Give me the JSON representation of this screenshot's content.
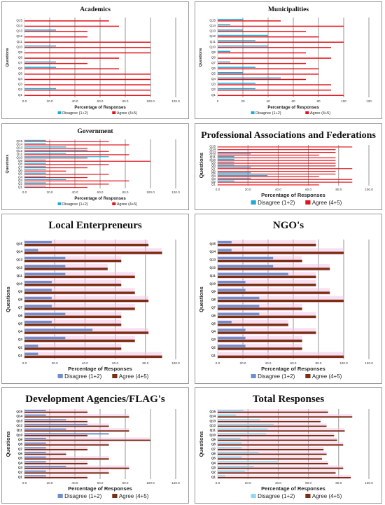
{
  "colors": {
    "disagree": "#1fa9d6",
    "agree": "#e0141c",
    "disagree_muted": "#6d8fd0",
    "agree_muted": "#7b2e12",
    "grid": "#8a8a8a",
    "highlight": "#f2c6ea"
  },
  "chart_data": [
    {
      "type": "bar",
      "title": "Academics",
      "title_size": "small",
      "xlabel": "Percentage of Responses",
      "ylabel": "Questions",
      "xlim": [
        0,
        120
      ],
      "xticks": [
        0,
        20,
        40,
        60,
        80,
        100,
        120
      ],
      "tick_labels": [
        "0.0",
        "20.0",
        "40.0",
        "60.0",
        "80.0",
        "100.0",
        "120.0"
      ],
      "categories": [
        "Q1",
        "Q2",
        "Q3",
        "Q4",
        "Q5",
        "Q6",
        "Q7",
        "Q8",
        "Q9",
        "Q10",
        "Q11",
        "Q12",
        "Q13",
        "Q14",
        "Q15"
      ],
      "grid": true,
      "legend": "bottom",
      "style": "standard",
      "series": [
        {
          "name": "Disagree (1+2)",
          "values": [
            0,
            25,
            0,
            0,
            0,
            25,
            25,
            0,
            0,
            25,
            0,
            0,
            25,
            0,
            0
          ]
        },
        {
          "name": "Agree (4+5)",
          "values": [
            100,
            100,
            100,
            100,
            100,
            75,
            50,
            75,
            100,
            100,
            100,
            50,
            50,
            75,
            67
          ]
        }
      ]
    },
    {
      "type": "bar",
      "title": "Municipalities",
      "title_size": "small",
      "xlabel": "Percentage of Responses",
      "ylabel": "Questions",
      "xlim": [
        0,
        120
      ],
      "xticks": [
        0,
        20,
        40,
        60,
        80,
        100,
        120
      ],
      "tick_labels": [
        "0",
        "20",
        "40",
        "60",
        "80",
        "100",
        "120"
      ],
      "categories": [
        "Q1",
        "Q2",
        "Q3",
        "Q4",
        "Q5",
        "Q6",
        "Q7",
        "Q8",
        "Q9",
        "Q10",
        "Q11",
        "Q12",
        "Q13",
        "Q14",
        "Q15"
      ],
      "grid": true,
      "legend": "bottom",
      "style": "standard",
      "series": [
        {
          "name": "Disagree (1+2)",
          "values": [
            0,
            30,
            30,
            50,
            20,
            30,
            10,
            0,
            10,
            40,
            30,
            40,
            20,
            10,
            20
          ]
        },
        {
          "name": "Agree (4+5)",
          "values": [
            100,
            90,
            90,
            70,
            80,
            80,
            70,
            90,
            70,
            90,
            100,
            80,
            70,
            100,
            50
          ]
        }
      ]
    },
    {
      "type": "bar",
      "title": "Government",
      "title_size": "small",
      "xlabel": "Percentage of Responses",
      "ylabel": "Questions",
      "xlim": [
        0,
        120
      ],
      "xticks": [
        0,
        20,
        40,
        60,
        80,
        100,
        120
      ],
      "tick_labels": [
        "0.0",
        "20.0",
        "40.0",
        "60.0",
        "80.0",
        "100.0",
        "120.0"
      ],
      "categories": [
        "Q1",
        "Q2",
        "Q3",
        "Q4",
        "Q5",
        "Q6",
        "Q7",
        "Q8",
        "Q9",
        "Q10",
        "Q11",
        "Q12",
        "Q13",
        "Q14",
        "Q15"
      ],
      "grid": true,
      "legend": "bottom",
      "style": "standard",
      "series": [
        {
          "name": "Disagree (1+2)",
          "values": [
            17,
            17,
            33,
            17,
            17,
            17,
            17,
            17,
            17,
            67,
            33,
            50,
            33,
            17,
            17
          ]
        },
        {
          "name": "Agree (4+5)",
          "values": [
            50,
            67,
            83,
            50,
            67,
            33,
            50,
            67,
            100,
            50,
            83,
            67,
            50,
            83,
            67
          ]
        }
      ]
    },
    {
      "type": "bar",
      "title": "Professional Associations and Federations",
      "title_size": "large",
      "xlabel": "Percentage of Responses",
      "ylabel": "Questions",
      "xlim": [
        0,
        100
      ],
      "xticks": [
        0,
        20,
        40,
        60,
        80,
        100
      ],
      "tick_labels": [
        "0.0",
        "20.0",
        "40.0",
        "60.0",
        "80.0",
        "100.0"
      ],
      "categories": [
        "Q1",
        "Q2",
        "Q3",
        "Q4",
        "Q5",
        "Q6",
        "Q7",
        "Q8",
        "Q9",
        "Q10",
        "Q11",
        "Q12",
        "Q13",
        "Q14",
        "Q15"
      ],
      "grid": true,
      "legend": "bottom",
      "style": "standard",
      "series": [
        {
          "name": "Disagree (1+2)",
          "values": [
            0,
            11,
            22,
            33,
            22,
            0,
            22,
            11,
            11,
            11,
            11,
            22,
            0,
            0,
            0
          ]
        },
        {
          "name": "Agree (4+5)",
          "values": [
            67,
            89,
            89,
            67,
            78,
            78,
            89,
            78,
            78,
            78,
            78,
            67,
            78,
            78,
            89
          ]
        }
      ]
    },
    {
      "type": "bar",
      "title": "Local Enterpreneurs",
      "title_size": "large",
      "xlabel": "Percentage of Responses",
      "ylabel": "Questions",
      "xlim": [
        0,
        100
      ],
      "xticks": [
        0,
        20,
        40,
        60,
        80,
        100
      ],
      "tick_labels": [
        "0.0",
        "20.0",
        "40.0",
        "60.0",
        "80.0",
        "100.0"
      ],
      "categories": [
        "Q1",
        "Q2",
        "Q3",
        "Q4",
        "Q5",
        "Q6",
        "Q7",
        "Q8",
        "Q9",
        "Q10",
        "Q11",
        "Q12",
        "Q13",
        "Q14",
        "Q15"
      ],
      "grid": true,
      "legend": "bottom",
      "style": "muted",
      "series": [
        {
          "name": "Disagree (1+2)",
          "values": [
            9,
            9,
            27,
            45,
            18,
            27,
            18,
            18,
            18,
            18,
            27,
            27,
            27,
            9,
            18
          ]
        },
        {
          "name": "Agree (4+5)",
          "values": [
            91,
            64,
            73,
            82,
            64,
            64,
            73,
            82,
            73,
            64,
            73,
            55,
            64,
            91,
            82
          ]
        }
      ]
    },
    {
      "type": "bar",
      "title": "NGO's",
      "title_size": "large",
      "xlabel": "Percentage of Responses",
      "ylabel": "Questions",
      "xlim": [
        0,
        120
      ],
      "xticks": [
        0,
        20,
        40,
        60,
        80,
        100,
        120
      ],
      "tick_labels": [
        "0.0",
        "20.0",
        "40.0",
        "60.0",
        "80.0",
        "100.0",
        "120.0"
      ],
      "categories": [
        "Q1",
        "Q2",
        "Q3",
        "Q4",
        "Q5",
        "Q6",
        "Q7",
        "Q8",
        "Q9",
        "Q10",
        "Q11",
        "Q12",
        "Q13",
        "Q14",
        "Q15"
      ],
      "grid": true,
      "legend": "bottom",
      "style": "muted",
      "series": [
        {
          "name": "Disagree (1+2)",
          "values": [
            0,
            22,
            22,
            22,
            11,
            33,
            33,
            33,
            22,
            22,
            56,
            44,
            44,
            11,
            11
          ]
        },
        {
          "name": "Agree (4+5)",
          "values": [
            100,
            67,
            67,
            78,
            56,
            78,
            67,
            100,
            89,
            78,
            78,
            89,
            67,
            100,
            78
          ]
        }
      ]
    },
    {
      "type": "bar",
      "title": "Development Agencies/FLAG's",
      "title_size": "large",
      "xlabel": "Percentage of Responses",
      "ylabel": "Questions",
      "xlim": [
        0,
        120
      ],
      "xticks": [
        0,
        20,
        40,
        60,
        80,
        100,
        120
      ],
      "tick_labels": [
        "0.0",
        "20.0",
        "40.0",
        "60.0",
        "80.0",
        "100.0",
        "120.0"
      ],
      "categories": [
        "Q1",
        "Q2",
        "Q3",
        "Q4",
        "Q5",
        "Q6",
        "Q7",
        "Q8",
        "Q9",
        "Q10",
        "Q11",
        "Q12",
        "Q13",
        "Q14",
        "Q15"
      ],
      "grid": true,
      "legend": "bottom",
      "style": "muted",
      "series": [
        {
          "name": "Disagree (1+2)",
          "values": [
            17,
            17,
            33,
            17,
            17,
            17,
            17,
            17,
            17,
            67,
            33,
            50,
            33,
            17,
            17
          ]
        },
        {
          "name": "Agree (4+5)",
          "values": [
            50,
            67,
            83,
            50,
            67,
            33,
            50,
            67,
            100,
            50,
            83,
            67,
            50,
            83,
            50
          ]
        }
      ]
    },
    {
      "type": "bar",
      "title": "Total Responses",
      "title_size": "large",
      "xlabel": "Percentage of Responses",
      "ylabel": "Questions",
      "xlim": [
        0,
        100
      ],
      "xticks": [
        0,
        20,
        40,
        60,
        80,
        100
      ],
      "tick_labels": [
        "0.0",
        "20.0",
        "40.0",
        "60.0",
        "80.0",
        "100.0"
      ],
      "categories": [
        "Q1",
        "Q2",
        "Q3",
        "Q4",
        "Q5",
        "Q6",
        "Q7",
        "Q8",
        "Q9",
        "Q10",
        "Q11",
        "Q12",
        "Q13",
        "Q14",
        "Q15"
      ],
      "grid": true,
      "legend": "bottom",
      "style": "muted_light",
      "series": [
        {
          "name": "Disagree (1+2)",
          "values": [
            5,
            18,
            24,
            40,
            16,
            27,
            16,
            16,
            15,
            32,
            33,
            37,
            28,
            12,
            17
          ]
        },
        {
          "name": "Agree (4+5)",
          "values": [
            88,
            78,
            83,
            73,
            69,
            72,
            70,
            83,
            79,
            77,
            84,
            72,
            68,
            89,
            73
          ]
        }
      ]
    }
  ]
}
